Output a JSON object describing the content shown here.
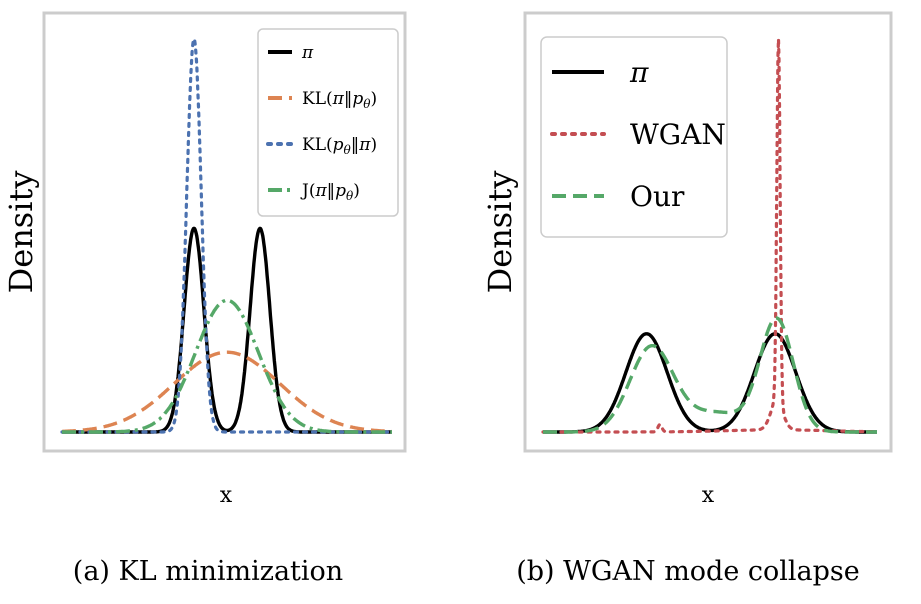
{
  "chart_data": [
    {
      "type": "line",
      "caption": "(a) KL minimization",
      "xlabel": "x",
      "ylabel": "Density",
      "xlim": [
        -5,
        5
      ],
      "ylim": [
        0,
        1.05
      ],
      "grid": false,
      "ticks": false,
      "legend": {
        "placement": "top-right"
      },
      "series": [
        {
          "name": "π",
          "legend_text": [
            "",
            "π",
            ""
          ],
          "color": "#000000",
          "style": "solid",
          "mixture": [
            [
              0.5,
              -1.0,
              0.3
            ],
            [
              0.5,
              1.0,
              0.3
            ]
          ]
        },
        {
          "name": "KL(π‖pθ)",
          "legend_text": [
            "KL(",
            "π",
            "‖",
            "p",
            "θ",
            ")"
          ],
          "color": "#dd8452",
          "style": "dashed",
          "mixture": [
            [
              1.0,
              0.0,
              1.6
            ]
          ]
        },
        {
          "name": "KL(pθ‖π)",
          "legend_text": [
            "KL(",
            "p",
            "θ",
            "‖",
            "π",
            ")"
          ],
          "color": "#4c72b0",
          "style": "dotted",
          "mixture": [
            [
              1.0,
              -1.0,
              0.22
            ]
          ]
        },
        {
          "name": "J(π‖pθ)",
          "legend_text": [
            "J(",
            "π",
            "‖",
            "p",
            "θ",
            ")"
          ],
          "color": "#55a868",
          "style": "dashdot",
          "mixture": [
            [
              1.0,
              0.0,
              0.95
            ]
          ]
        }
      ],
      "peaks": {
        "π": 0.518,
        "KL(π‖pθ)": 0.203,
        "KL(pθ‖π)": 1.0,
        "J(π‖pθ)": 0.335
      }
    },
    {
      "type": "line",
      "caption": "(b) WGAN mode collapse",
      "xlabel": "x",
      "ylabel": "Density",
      "xlim": [
        -5,
        5
      ],
      "ylim": [
        0,
        1.05
      ],
      "grid": false,
      "ticks": false,
      "legend": {
        "placement": "top-left"
      },
      "series": [
        {
          "name": "π",
          "color": "#000000",
          "style": "solid"
        },
        {
          "name": "WGAN",
          "color": "#c44e52",
          "style": "dotted"
        },
        {
          "name": "Our",
          "color": "#55a868",
          "style": "dashed"
        }
      ],
      "peaks": {
        "π": 0.25,
        "WGAN": 1.0,
        "Our": 0.29
      }
    }
  ]
}
